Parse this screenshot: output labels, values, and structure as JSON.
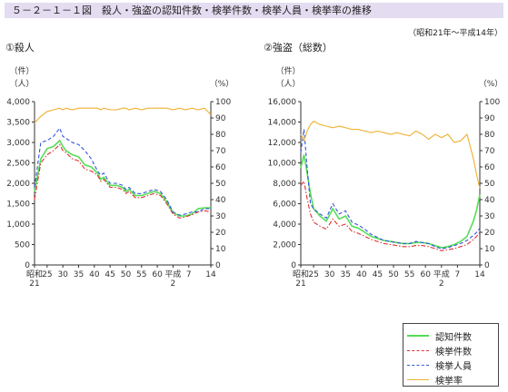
{
  "header": {
    "title": "５－２－１－１図　殺人・強盗の認知件数・検挙件数・検挙人員・検挙率の推移",
    "period": "（昭和21年～平成14年）"
  },
  "colors": {
    "recognized": "#55dd55",
    "cleared_cases": "#dd3333",
    "arrested": "#3355dd",
    "rate": "#f0b030",
    "axis": "#333333"
  },
  "legend": {
    "items": [
      {
        "label": "認知件数",
        "key": "recognized",
        "style": "solid"
      },
      {
        "label": "検挙件数",
        "key": "cleared_cases",
        "style": "dashdot"
      },
      {
        "label": "検挙人員",
        "key": "arrested",
        "style": "dashed"
      },
      {
        "label": "検挙率",
        "key": "rate",
        "style": "solid"
      }
    ]
  },
  "chart_data": [
    {
      "type": "line",
      "title": "①殺人",
      "y_unit_left": [
        "（件）",
        "（人）"
      ],
      "y_unit_right": "（%）",
      "ylim_left": [
        0,
        4000
      ],
      "yticks_left": [
        "0",
        "500",
        "1,000",
        "1,500",
        "2,000",
        "2,500",
        "3,000",
        "3,500",
        "4,000"
      ],
      "ylim_right": [
        0,
        100
      ],
      "yticks_right": [
        "0",
        "10",
        "20",
        "30",
        "40",
        "50",
        "60",
        "70",
        "80",
        "90",
        "100"
      ],
      "xlim": [
        1946,
        2002
      ],
      "xticks": [
        {
          "year": 1946,
          "label": "昭和",
          "sub": "21"
        },
        {
          "year": 1950,
          "label": "25"
        },
        {
          "year": 1955,
          "label": "30"
        },
        {
          "year": 1960,
          "label": "35"
        },
        {
          "year": 1965,
          "label": "40"
        },
        {
          "year": 1970,
          "label": "45"
        },
        {
          "year": 1975,
          "label": "50"
        },
        {
          "year": 1980,
          "label": "55"
        },
        {
          "year": 1985,
          "label": "60"
        },
        {
          "year": 1990,
          "label": "平成",
          "sub": "2"
        },
        {
          "year": 1995,
          "label": "7"
        },
        {
          "year": 2002,
          "label": "14"
        }
      ],
      "x": [
        1946,
        1948,
        1950,
        1952,
        1954,
        1955,
        1956,
        1958,
        1960,
        1962,
        1964,
        1966,
        1967,
        1968,
        1970,
        1972,
        1974,
        1975,
        1976,
        1978,
        1980,
        1982,
        1984,
        1986,
        1988,
        1990,
        1992,
        1994,
        1996,
        1998,
        2000,
        2002
      ],
      "series": [
        {
          "name": "認知件数",
          "key": "recognized",
          "axis": "left",
          "values": [
            1800,
            2600,
            2850,
            2900,
            3050,
            2900,
            2800,
            2700,
            2650,
            2450,
            2400,
            2250,
            2100,
            2150,
            1950,
            1950,
            1900,
            1800,
            1850,
            1700,
            1700,
            1750,
            1800,
            1750,
            1550,
            1280,
            1200,
            1200,
            1250,
            1380,
            1400,
            1400
          ]
        },
        {
          "name": "検挙件数",
          "key": "cleared_cases",
          "axis": "left",
          "values": [
            1600,
            2500,
            2700,
            2800,
            2950,
            2800,
            2750,
            2600,
            2550,
            2350,
            2300,
            2200,
            2050,
            2100,
            1900,
            1900,
            1850,
            1750,
            1800,
            1650,
            1650,
            1700,
            1750,
            1700,
            1500,
            1250,
            1150,
            1180,
            1230,
            1300,
            1330,
            1300
          ]
        },
        {
          "name": "検挙人員",
          "key": "arrested",
          "axis": "left",
          "values": [
            1900,
            3000,
            3050,
            3150,
            3350,
            3150,
            3100,
            3000,
            2950,
            2800,
            2600,
            2300,
            2200,
            2250,
            2000,
            2000,
            1950,
            1850,
            1900,
            1750,
            1750,
            1800,
            1850,
            1800,
            1600,
            1300,
            1220,
            1250,
            1300,
            1300,
            1380,
            1380
          ]
        },
        {
          "name": "検挙率",
          "key": "rate",
          "axis": "right",
          "values": [
            87,
            91,
            94,
            95,
            96,
            95,
            96,
            95,
            96,
            96,
            96,
            96,
            95,
            96,
            95,
            95,
            96,
            96,
            95,
            96,
            95,
            96,
            96,
            96,
            96,
            95,
            96,
            95,
            96,
            95,
            96,
            92
          ]
        }
      ]
    },
    {
      "type": "line",
      "title": "②強盗（総数）",
      "y_unit_left": [
        "（件）",
        "（人）"
      ],
      "y_unit_right": "（%）",
      "ylim_left": [
        0,
        16000
      ],
      "yticks_left": [
        "0",
        "2,000",
        "4,000",
        "6,000",
        "8,000",
        "10,000",
        "12,000",
        "14,000",
        "16,000"
      ],
      "ylim_right": [
        0,
        100
      ],
      "yticks_right": [
        "0",
        "10",
        "20",
        "30",
        "40",
        "50",
        "60",
        "70",
        "80",
        "90",
        "100"
      ],
      "xlim": [
        1946,
        2002
      ],
      "xticks": [
        {
          "year": 1946,
          "label": "昭和",
          "sub": "21"
        },
        {
          "year": 1950,
          "label": "25"
        },
        {
          "year": 1955,
          "label": "30"
        },
        {
          "year": 1960,
          "label": "35"
        },
        {
          "year": 1965,
          "label": "40"
        },
        {
          "year": 1970,
          "label": "45"
        },
        {
          "year": 1975,
          "label": "50"
        },
        {
          "year": 1980,
          "label": "55"
        },
        {
          "year": 1985,
          "label": "60"
        },
        {
          "year": 1990,
          "label": "平成",
          "sub": "2"
        },
        {
          "year": 1995,
          "label": "7"
        },
        {
          "year": 2002,
          "label": "14"
        }
      ],
      "x": [
        1946,
        1947,
        1948,
        1949,
        1950,
        1952,
        1954,
        1956,
        1958,
        1960,
        1962,
        1964,
        1966,
        1968,
        1970,
        1972,
        1974,
        1976,
        1978,
        1980,
        1982,
        1984,
        1986,
        1988,
        1990,
        1992,
        1994,
        1996,
        1998,
        2000,
        2001,
        2002
      ],
      "series": [
        {
          "name": "認知件数",
          "key": "recognized",
          "axis": "left",
          "values": [
            9500,
            10800,
            9000,
            7000,
            5500,
            4800,
            4300,
            5500,
            4500,
            4800,
            3800,
            3600,
            3200,
            2800,
            2600,
            2400,
            2300,
            2200,
            2100,
            2100,
            2200,
            2200,
            2100,
            1900,
            1700,
            1800,
            2000,
            2300,
            2800,
            4300,
            5400,
            6900
          ]
        },
        {
          "name": "検挙件数",
          "key": "cleared_cases",
          "axis": "left",
          "values": [
            7800,
            8200,
            6500,
            5000,
            4200,
            3800,
            3500,
            4500,
            3800,
            4000,
            3300,
            3100,
            2800,
            2500,
            2300,
            2100,
            2000,
            1900,
            1800,
            1800,
            1900,
            1900,
            1800,
            1600,
            1400,
            1500,
            1600,
            1800,
            2000,
            2500,
            2800,
            3200
          ]
        },
        {
          "name": "検挙人員",
          "key": "arrested",
          "axis": "left",
          "values": [
            11000,
            13300,
            9500,
            6000,
            5500,
            5000,
            4600,
            6000,
            5000,
            5300,
            4200,
            3900,
            3500,
            3000,
            2700,
            2400,
            2300,
            2200,
            2100,
            2100,
            2300,
            2200,
            2100,
            1800,
            1600,
            1700,
            1900,
            2100,
            2400,
            2900,
            3200,
            3600
          ]
        },
        {
          "name": "検挙率",
          "key": "rate",
          "axis": "right",
          "values": [
            80,
            76,
            82,
            86,
            88,
            86,
            85,
            84,
            85,
            84,
            83,
            83,
            82,
            81,
            82,
            81,
            80,
            81,
            80,
            79,
            82,
            80,
            77,
            80,
            78,
            80,
            75,
            76,
            80,
            65,
            55,
            47
          ]
        }
      ]
    }
  ]
}
